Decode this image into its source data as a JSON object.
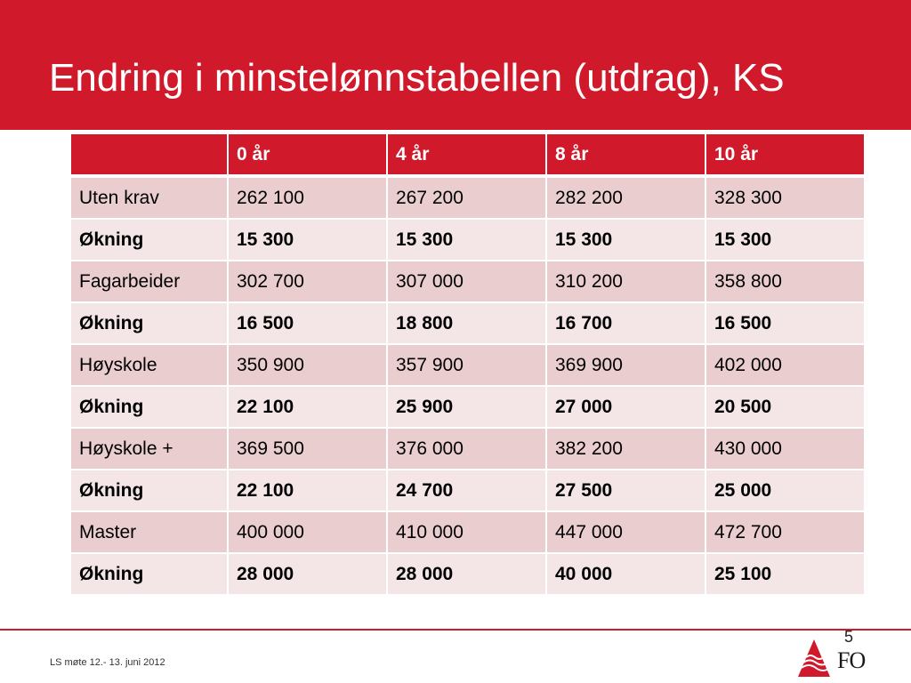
{
  "slide": {
    "title": "Endring i minstelønnstabellen (utdrag), KS",
    "page_number": "5",
    "footer": "LS møte 12.- 13. juni 2012",
    "logo_text": "FO"
  },
  "colors": {
    "brand_red": "#d0192b",
    "row_dark": "#e9cdcf",
    "row_light": "#f4e6e7"
  },
  "table": {
    "headers": [
      "",
      "0 år",
      "4 år",
      "8 år",
      "10 år"
    ],
    "rows": [
      [
        "Uten krav",
        "262 100",
        "267 200",
        "282 200",
        "328 300"
      ],
      [
        "Økning",
        "15 300",
        "15 300",
        "15 300",
        "15 300"
      ],
      [
        "Fagarbeider",
        "302 700",
        "307 000",
        "310 200",
        "358 800"
      ],
      [
        "Økning",
        "16 500",
        "18 800",
        "16 700",
        "16 500"
      ],
      [
        "Høyskole",
        "350 900",
        "357 900",
        "369 900",
        "402 000"
      ],
      [
        "Økning",
        "22 100",
        "25 900",
        "27 000",
        "20 500"
      ],
      [
        "Høyskole +",
        "369 500",
        "376 000",
        "382 200",
        "430 000"
      ],
      [
        "Økning",
        "22 100",
        "24 700",
        "27 500",
        "25 000"
      ],
      [
        "Master",
        "400 000",
        "410 000",
        "447 000",
        "472 700"
      ],
      [
        "Økning",
        "28 000",
        "28 000",
        "40 000",
        "25 100"
      ]
    ]
  }
}
